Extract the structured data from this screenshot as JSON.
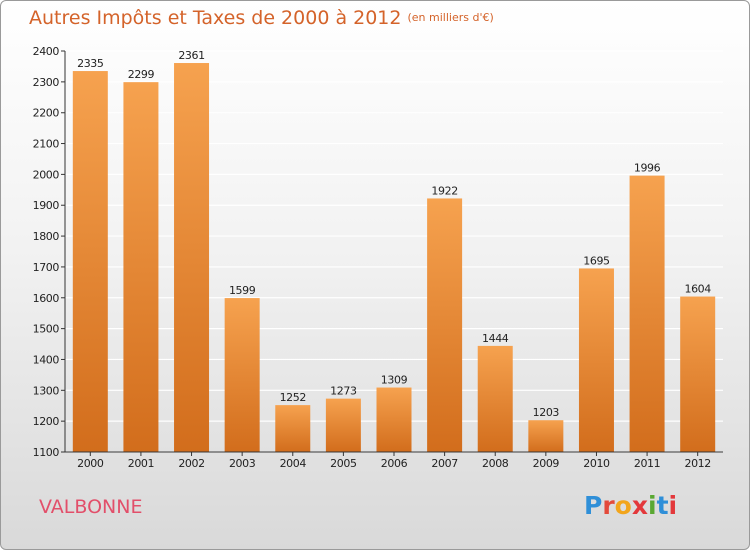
{
  "title": {
    "main": "Autres Impôts et Taxes de 2000 à 2012",
    "unit": "(en milliers d'€)"
  },
  "commune": "VALBONNE",
  "logo": {
    "text": "Proxiti",
    "letters": [
      {
        "ch": "P",
        "color": "#2f8fd8"
      },
      {
        "ch": "r",
        "color": "#e34a3b"
      },
      {
        "ch": "o",
        "color": "#f2a51b"
      },
      {
        "ch": "x",
        "color": "#e3383b"
      },
      {
        "ch": "i",
        "color": "#5aa832"
      },
      {
        "ch": "t",
        "color": "#2f8fd8"
      },
      {
        "ch": "i",
        "color": "#e3383b"
      }
    ]
  },
  "chart_data": {
    "type": "bar",
    "categories": [
      "2000",
      "2001",
      "2002",
      "2003",
      "2004",
      "2005",
      "2006",
      "2007",
      "2008",
      "2009",
      "2010",
      "2011",
      "2012"
    ],
    "values": [
      2335,
      2299,
      2361,
      1599,
      1252,
      1273,
      1309,
      1922,
      1444,
      1203,
      1695,
      1996,
      1604
    ],
    "title": "Autres Impôts et Taxes de 2000 à 2012",
    "subtitle": "(en milliers d'€)",
    "ylim": [
      1100,
      2400
    ],
    "yticks": [
      1100,
      1200,
      1300,
      1400,
      1500,
      1600,
      1700,
      1800,
      1900,
      2000,
      2100,
      2200,
      2300,
      2400
    ],
    "grid": true,
    "data_labels": true,
    "colors": {
      "bar_top": "#f6a24f",
      "bar_bottom": "#d26d1c",
      "grid": "#ffffff",
      "axis": "#333333"
    }
  }
}
